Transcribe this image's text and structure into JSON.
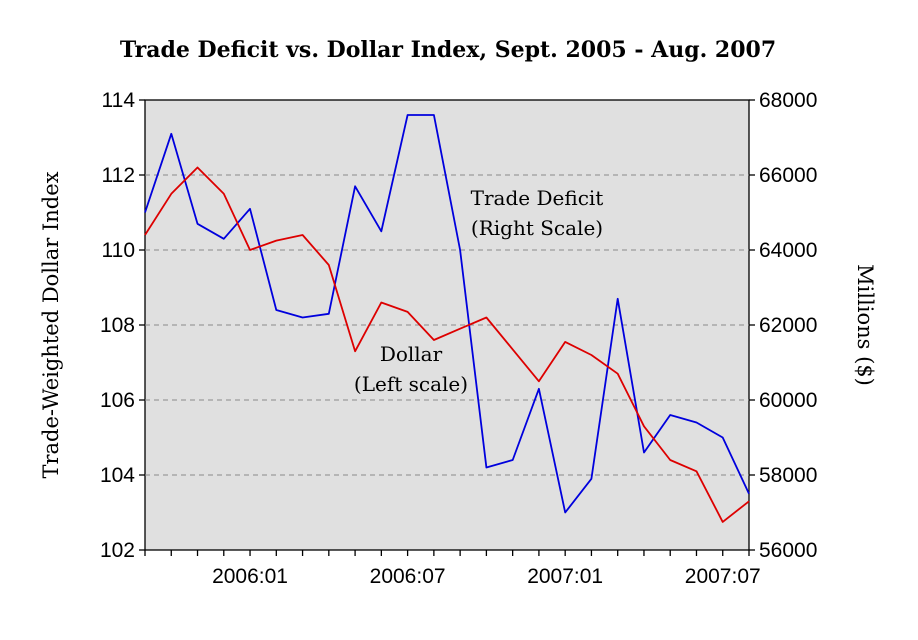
{
  "chart_data": {
    "type": "line",
    "title": "Trade Deficit vs. Dollar Index, Sept. 2005 - Aug. 2007",
    "ylabel_left": "Trade-Weighted Dollar Index",
    "ylabel_right": "Millions ($)",
    "x": [
      "2005:09",
      "2005:10",
      "2005:11",
      "2005:12",
      "2006:01",
      "2006:02",
      "2006:03",
      "2006:04",
      "2006:05",
      "2006:06",
      "2006:07",
      "2006:08",
      "2006:09",
      "2006:10",
      "2006:11",
      "2006:12",
      "2007:01",
      "2007:02",
      "2007:03",
      "2007:04",
      "2007:05",
      "2007:06",
      "2007:07",
      "2007:08"
    ],
    "x_tick_labels": [
      "2006:01",
      "2006:07",
      "2007:01",
      "2007:07"
    ],
    "x_tick_positions": [
      "2006:01",
      "2006:07",
      "2007:01",
      "2007:07"
    ],
    "ylim_left": [
      102,
      114
    ],
    "yticks_left": [
      "102",
      "104",
      "106",
      "108",
      "110",
      "112",
      "114"
    ],
    "ylim_right": [
      56000,
      68000
    ],
    "yticks_right": [
      "56000",
      "58000",
      "60000",
      "62000",
      "64000",
      "66000",
      "68000"
    ],
    "grid": "horizontal dashed",
    "background": "#e0e0e0",
    "series": [
      {
        "name": "Trade Deficit",
        "axis": "right",
        "color": "#0000dd",
        "values": [
          65000,
          67100,
          64700,
          64300,
          65100,
          62400,
          62200,
          62300,
          65700,
          64500,
          67600,
          67600,
          64000,
          58200,
          58400,
          60300,
          57000,
          57900,
          62700,
          58600,
          59600,
          59400,
          59000,
          57500
        ]
      },
      {
        "name": "Dollar",
        "axis": "left",
        "color": "#dd0000",
        "values": [
          110.4,
          111.5,
          112.2,
          111.5,
          110.0,
          110.25,
          110.4,
          109.6,
          107.3,
          108.6,
          108.35,
          107.6,
          107.9,
          108.2,
          107.35,
          106.5,
          107.55,
          107.2,
          106.7,
          105.3,
          104.4,
          104.1,
          102.75,
          103.3
        ]
      }
    ],
    "annotations": [
      {
        "lines": [
          "Trade Deficit",
          "(Right Scale)"
        ]
      },
      {
        "lines": [
          "Dollar",
          "(Left scale)"
        ]
      }
    ]
  }
}
